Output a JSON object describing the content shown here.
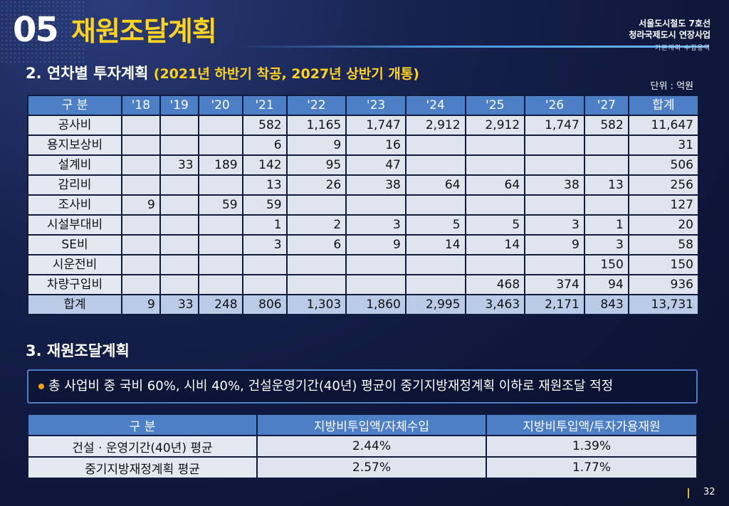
{
  "header": {
    "section_number": "05",
    "section_title": "재원조달계획",
    "project_line1": "서울도시철도 7호선",
    "project_line2": "청라국제도시 연장사업",
    "project_line3": "기본계획 수립용역"
  },
  "investment": {
    "heading": "2. 연차별 투자계획",
    "heading_paren": "(2021년 하반기 착공, 2027년 상반기 개통)",
    "unit": "단위 : 억원",
    "columns": [
      "구 분",
      "'18",
      "'19",
      "'20",
      "'21",
      "'22",
      "'23",
      "'24",
      "'25",
      "'26",
      "'27",
      "합계"
    ],
    "rows": [
      {
        "label": "공사비",
        "cells": [
          "",
          "",
          "",
          "582",
          "1,165",
          "1,747",
          "2,912",
          "2,912",
          "1,747",
          "582",
          "11,647"
        ]
      },
      {
        "label": "용지보상비",
        "cells": [
          "",
          "",
          "",
          "6",
          "9",
          "16",
          "",
          "",
          "",
          "",
          "31"
        ]
      },
      {
        "label": "설계비",
        "cells": [
          "",
          "33",
          "189",
          "142",
          "95",
          "47",
          "",
          "",
          "",
          "",
          "506"
        ]
      },
      {
        "label": "감리비",
        "cells": [
          "",
          "",
          "",
          "13",
          "26",
          "38",
          "64",
          "64",
          "38",
          "13",
          "256"
        ]
      },
      {
        "label": "조사비",
        "cells": [
          "9",
          "",
          "59",
          "59",
          "",
          "",
          "",
          "",
          "",
          "",
          "127"
        ]
      },
      {
        "label": "시설부대비",
        "cells": [
          "",
          "",
          "",
          "1",
          "2",
          "3",
          "5",
          "5",
          "3",
          "1",
          "20"
        ]
      },
      {
        "label": "SE비",
        "cells": [
          "",
          "",
          "",
          "3",
          "6",
          "9",
          "14",
          "14",
          "9",
          "3",
          "58"
        ]
      },
      {
        "label": "시운전비",
        "cells": [
          "",
          "",
          "",
          "",
          "",
          "",
          "",
          "",
          "",
          "150",
          "150"
        ]
      },
      {
        "label": "차량구입비",
        "cells": [
          "",
          "",
          "",
          "",
          "",
          "",
          "",
          "468",
          "374",
          "94",
          "936"
        ]
      }
    ],
    "total": {
      "label": "합계",
      "cells": [
        "9",
        "33",
        "248",
        "806",
        "1,303",
        "1,860",
        "2,995",
        "3,463",
        "2,171",
        "843",
        "13,731"
      ]
    }
  },
  "funding": {
    "heading": "3. 재원조달계획",
    "note": "총 사업비 중 국비 60%, 시비 40%, 건설운영기간(40년) 평균이 중기지방재정계획 이하로 재원조달 적정",
    "columns": [
      "구 분",
      "지방비투입액/자체수입",
      "지방비투입액/투자가용재원"
    ],
    "rows": [
      {
        "label": "건설 · 운영기간(40년) 평균",
        "cells": [
          "2.44%",
          "1.39%"
        ]
      },
      {
        "label": "중기지방재정계획 평균",
        "cells": [
          "2.57%",
          "1.77%"
        ]
      }
    ]
  },
  "footer": {
    "page_number": "32"
  },
  "colors": {
    "accent": "#ffd21f",
    "header_cell": "#4d7fc7",
    "background": "#0f1a3d"
  }
}
